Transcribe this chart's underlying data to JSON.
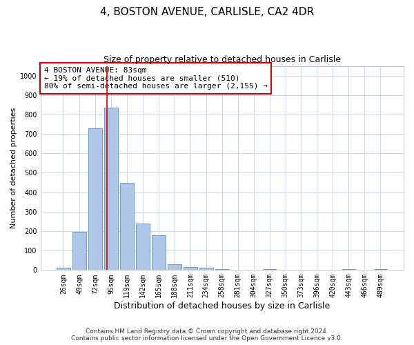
{
  "title1": "4, BOSTON AVENUE, CARLISLE, CA2 4DR",
  "title2": "Size of property relative to detached houses in Carlisle",
  "xlabel": "Distribution of detached houses by size in Carlisle",
  "ylabel": "Number of detached properties",
  "categories": [
    "26sqm",
    "49sqm",
    "72sqm",
    "95sqm",
    "119sqm",
    "142sqm",
    "165sqm",
    "188sqm",
    "211sqm",
    "234sqm",
    "258sqm",
    "281sqm",
    "304sqm",
    "327sqm",
    "350sqm",
    "373sqm",
    "396sqm",
    "420sqm",
    "443sqm",
    "466sqm",
    "489sqm"
  ],
  "values": [
    12,
    195,
    730,
    835,
    450,
    238,
    178,
    30,
    17,
    13,
    5,
    0,
    0,
    5,
    0,
    0,
    0,
    0,
    5,
    0,
    5
  ],
  "bar_color": "#aec6e8",
  "bar_edge_color": "#5a8fc0",
  "grid_color": "#c8d8ea",
  "vline_pos": 2.72,
  "vline_color": "#cc0000",
  "annotation_text": "4 BOSTON AVENUE: 83sqm\n← 19% of detached houses are smaller (510)\n80% of semi-detached houses are larger (2,155) →",
  "annotation_box_facecolor": "#ffffff",
  "annotation_box_edgecolor": "#cc0000",
  "footnote1": "Contains HM Land Registry data © Crown copyright and database right 2024.",
  "footnote2": "Contains public sector information licensed under the Open Government Licence v3.0.",
  "ylim": [
    0,
    1050
  ],
  "yticks": [
    0,
    100,
    200,
    300,
    400,
    500,
    600,
    700,
    800,
    900,
    1000
  ],
  "title1_fontsize": 11,
  "title2_fontsize": 9,
  "xlabel_fontsize": 9,
  "ylabel_fontsize": 8,
  "tick_fontsize": 7,
  "footnote_fontsize": 6.5,
  "annotation_fontsize": 8
}
